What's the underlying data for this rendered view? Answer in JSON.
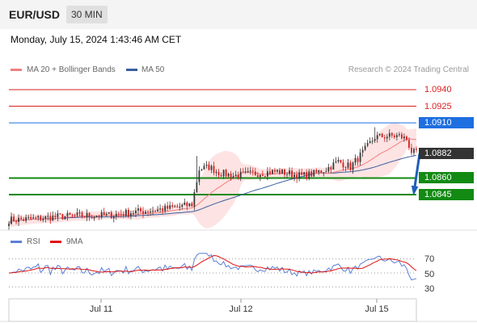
{
  "header": {
    "pair": "EUR/USD",
    "timeframe": "30 MIN"
  },
  "datetime": "Monday, July 15, 2024 1:43:46 AM CET",
  "legend": {
    "ma20": {
      "label": "MA 20 + Bollinger Bands",
      "color": "#f08080"
    },
    "ma50": {
      "label": "MA 50",
      "color": "#3a5f9e"
    },
    "rsi": {
      "label": "RSI",
      "color": "#5b7fd6"
    },
    "ma9": {
      "label": "9MA",
      "color": "#e01010"
    }
  },
  "credit": "Research © 2024 Trading Central",
  "levels": [
    {
      "value": "1.0940",
      "kind": "resistance",
      "color": "#d62020"
    },
    {
      "value": "1.0925",
      "kind": "resistance",
      "color": "#d62020"
    },
    {
      "value": "1.0910",
      "kind": "pivot",
      "color": "#1e6fe0"
    },
    {
      "value": "1.0882",
      "kind": "last",
      "color": "#333333"
    },
    {
      "value": "1.0860",
      "kind": "support",
      "color": "#138a13"
    },
    {
      "value": "1.0845",
      "kind": "support",
      "color": "#138a13"
    }
  ],
  "chart_data": {
    "type": "candlestick",
    "x_ticks": [
      "Jul 11",
      "Jul 12",
      "Jul 15"
    ],
    "price_range": [
      1.0815,
      1.0951
    ],
    "close_path": [
      [
        0,
        1.0822
      ],
      [
        10,
        1.0823
      ],
      [
        20,
        1.0825
      ],
      [
        30,
        1.0826
      ],
      [
        40,
        1.0826
      ],
      [
        50,
        1.0829
      ],
      [
        60,
        1.0831
      ],
      [
        70,
        1.0834
      ],
      [
        75,
        1.0836
      ],
      [
        78,
        1.0868
      ],
      [
        82,
        1.087
      ],
      [
        86,
        1.0865
      ],
      [
        92,
        1.0862
      ],
      [
        100,
        1.0864
      ],
      [
        110,
        1.0866
      ],
      [
        120,
        1.0862
      ],
      [
        125,
        1.0864
      ],
      [
        130,
        1.0868
      ],
      [
        135,
        1.0875
      ],
      [
        140,
        1.087
      ],
      [
        145,
        1.0883
      ],
      [
        150,
        1.0897
      ],
      [
        155,
        1.0898
      ],
      [
        160,
        1.0898
      ],
      [
        163,
        1.0895
      ],
      [
        165,
        1.0884
      ],
      [
        167,
        1.0882
      ]
    ],
    "rsi_ticks": [
      70,
      50,
      30
    ],
    "rsi_range": [
      20,
      80
    ]
  }
}
